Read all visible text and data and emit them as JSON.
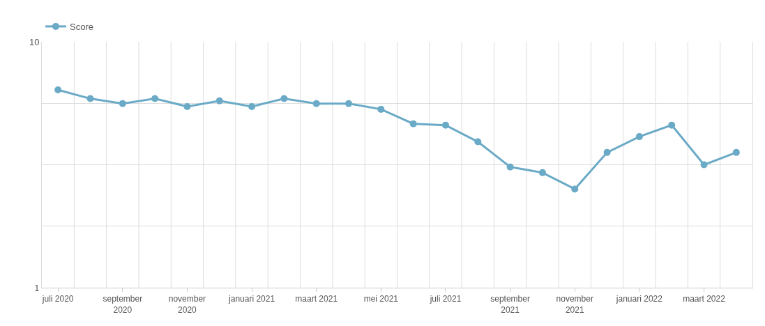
{
  "chart_data": {
    "type": "line",
    "categories": [
      "juli 2020",
      null,
      "september\n2020",
      null,
      "november\n2020",
      null,
      "januari 2021",
      null,
      "maart 2021",
      null,
      "mei 2021",
      null,
      "juli 2021",
      null,
      "september\n2021",
      null,
      "november\n2021",
      null,
      "januari 2022",
      null,
      "maart 2022",
      null
    ],
    "series": [
      {
        "name": "Score",
        "color": "#6aaac6",
        "values": [
          8.24,
          7.92,
          7.74,
          7.92,
          7.63,
          7.84,
          7.63,
          7.92,
          7.74,
          7.74,
          7.53,
          7.0,
          6.95,
          6.34,
          5.42,
          5.21,
          4.61,
          5.95,
          6.53,
          6.95,
          5.5,
          5.95
        ]
      }
    ],
    "ylim": [
      1,
      10
    ],
    "yticks": [
      1,
      {
        "value": 3.25,
        "label": null
      },
      {
        "value": 5.5,
        "label": null
      },
      {
        "value": 7.75,
        "label": null
      },
      10
    ],
    "grid": true,
    "legend": "top left",
    "marker": "circle",
    "line_style": "solid"
  }
}
